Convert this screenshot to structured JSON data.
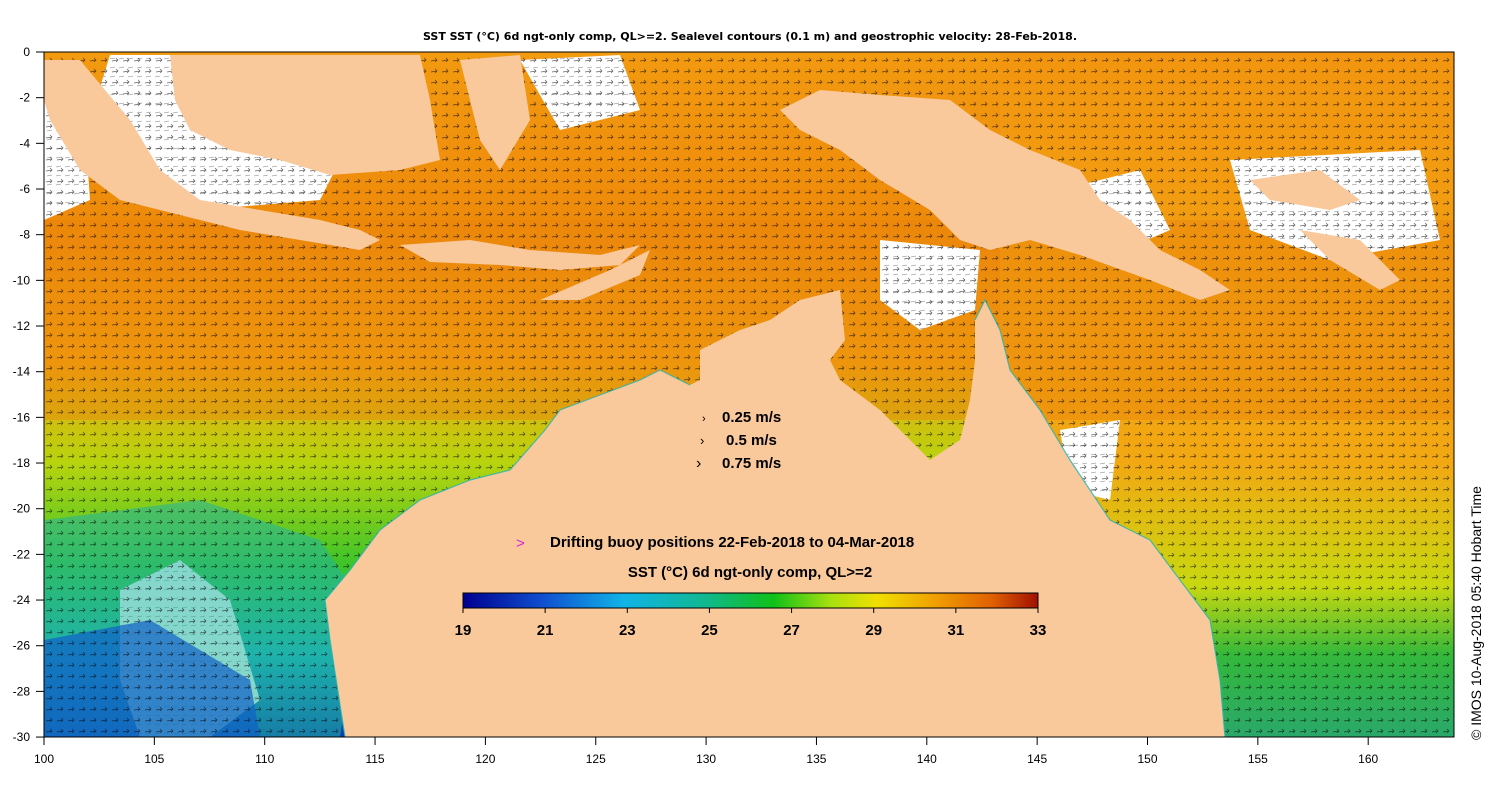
{
  "title": "SST SST (°C) 6d ngt-only comp, QL>=2. Sealevel contours (0.1 m) and geostrophic velocity: 28-Feb-2018.",
  "credit": "© IMOS 10-Aug-2018 05:40 Hobart Time",
  "x_ticks": [
    "100",
    "105",
    "110",
    "115",
    "120",
    "125",
    "130",
    "135",
    "140",
    "145",
    "150",
    "155",
    "160"
  ],
  "y_ticks": [
    "0",
    "-2",
    "-4",
    "-6",
    "-8",
    "-10",
    "-12",
    "-14",
    "-16",
    "-18",
    "-20",
    "-22",
    "-24",
    "-26",
    "-28",
    "-30"
  ],
  "velocity_legend": [
    {
      "arrow": "›",
      "label": "0.25 m/s"
    },
    {
      "arrow": "›",
      "label": "0.5 m/s"
    },
    {
      "arrow": "›",
      "label": "0.75 m/s"
    }
  ],
  "buoy_legend": {
    "marker": ">",
    "label": "Drifting buoy positions 22-Feb-2018 to 04-Mar-2018"
  },
  "colorbar": {
    "title": "SST (°C) 6d ngt-only comp, QL>=2",
    "ticks": [
      "19",
      "21",
      "23",
      "25",
      "27",
      "29",
      "31",
      "33"
    ],
    "min": 19,
    "max": 33
  },
  "colors": {
    "land": "#f9c89b",
    "cloud": "#ffffff",
    "frame": "#000000"
  }
}
